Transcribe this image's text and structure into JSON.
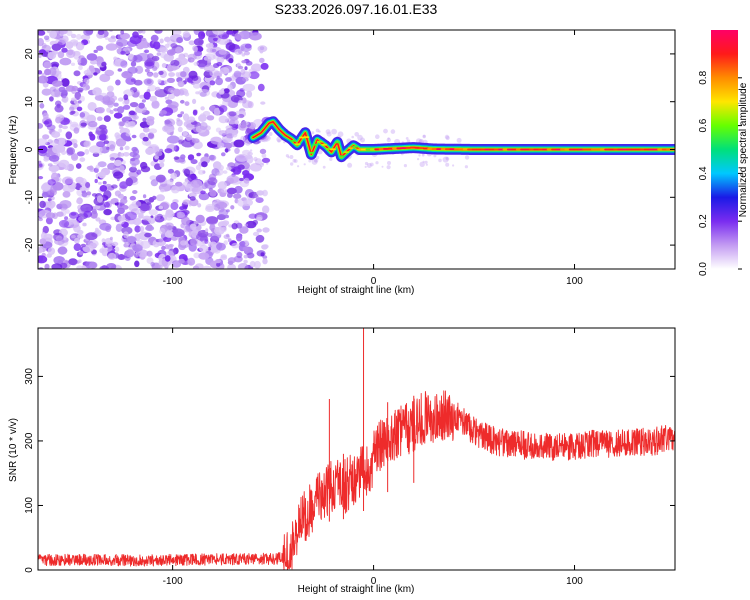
{
  "title": "S233.2026.097.16.01.E33",
  "colors": {
    "background": "#ffffff",
    "scatter": "#8a4be8",
    "snr_line": "#ee2b2b",
    "axis": "#000000"
  },
  "chart_data": [
    {
      "type": "heatmap",
      "name": "spectrogram",
      "title": "S233.2026.097.16.01.E33",
      "xlabel": "Height of straight line (km)",
      "ylabel": "Frequency (Hz)",
      "xlim": [
        -167,
        150
      ],
      "ylim": [
        -25,
        25
      ],
      "xticks": [
        "-100",
        "0",
        "100"
      ],
      "xtick_values": [
        -100,
        0,
        100
      ],
      "yticks": [
        "20",
        "10",
        "0",
        "-10",
        "-20"
      ],
      "ytick_values": [
        20,
        10,
        0,
        -10,
        -20
      ],
      "noise_region_x": [
        -167,
        -53
      ],
      "ridge": {
        "x": [
          -60,
          -56,
          -52,
          -50,
          -47,
          -44,
          -41,
          -38,
          -34,
          -31,
          -28,
          -24,
          -21,
          -18,
          -16,
          -13,
          -10,
          -7,
          0,
          10,
          20,
          30,
          50,
          80,
          100,
          120,
          150
        ],
        "y": [
          2.5,
          3.5,
          5.5,
          5.8,
          4.2,
          3.0,
          2.2,
          1.0,
          3.5,
          -1.0,
          2.0,
          0.8,
          -0.5,
          1.5,
          -1.5,
          -0.3,
          0.8,
          0.0,
          0.0,
          0.2,
          0.4,
          0.1,
          0.0,
          0.0,
          0.0,
          0.0,
          0.0
        ]
      },
      "colorbar": {
        "label": "Normalized spectral amplitude",
        "range": [
          0,
          1
        ],
        "ticks": [
          "0.0",
          "0.2",
          "0.4",
          "0.6",
          "0.8"
        ],
        "tick_values": [
          0.0,
          0.2,
          0.4,
          0.6,
          0.8
        ],
        "colormap": [
          "#ffffff",
          "#c39bf2",
          "#7a2cf0",
          "#1a1ae6",
          "#00c8ff",
          "#00e07a",
          "#66ff00",
          "#ffe600",
          "#ff8c00",
          "#ff1a1a",
          "#ff0066"
        ]
      }
    },
    {
      "type": "line",
      "name": "snr",
      "xlabel": "Height of straight line (km)",
      "ylabel": "SNR (10 * v/v)",
      "xlim": [
        -167,
        150
      ],
      "ylim": [
        0,
        375
      ],
      "xticks": [
        "-100",
        "0",
        "100"
      ],
      "xtick_values": [
        -100,
        0,
        100
      ],
      "yticks": [
        "0",
        "100",
        "200",
        "300"
      ],
      "ytick_values": [
        0,
        100,
        200,
        300
      ],
      "series": [
        {
          "name": "SNR",
          "x": [
            -167,
            -150,
            -130,
            -110,
            -90,
            -70,
            -50,
            -42,
            -38,
            -34,
            -30,
            -26,
            -22,
            -18,
            -14,
            -10,
            -6,
            -2,
            2,
            6,
            10,
            14,
            18,
            22,
            26,
            30,
            34,
            38,
            42,
            46,
            50,
            60,
            70,
            80,
            90,
            100,
            110,
            120,
            130,
            140,
            150
          ],
          "y": [
            15,
            16,
            15,
            15,
            16,
            17,
            17,
            20,
            60,
            85,
            100,
            120,
            125,
            135,
            130,
            140,
            150,
            160,
            185,
            200,
            205,
            215,
            220,
            230,
            235,
            238,
            240,
            242,
            238,
            225,
            215,
            200,
            195,
            192,
            190,
            193,
            195,
            196,
            198,
            200,
            205
          ]
        }
      ],
      "spikes": [
        {
          "x": -22,
          "y": 265
        },
        {
          "x": -15,
          "y": 180
        },
        {
          "x": -5,
          "y": 375
        },
        {
          "x": 7,
          "y": 260
        },
        {
          "x": 20,
          "y": 270
        }
      ]
    }
  ]
}
